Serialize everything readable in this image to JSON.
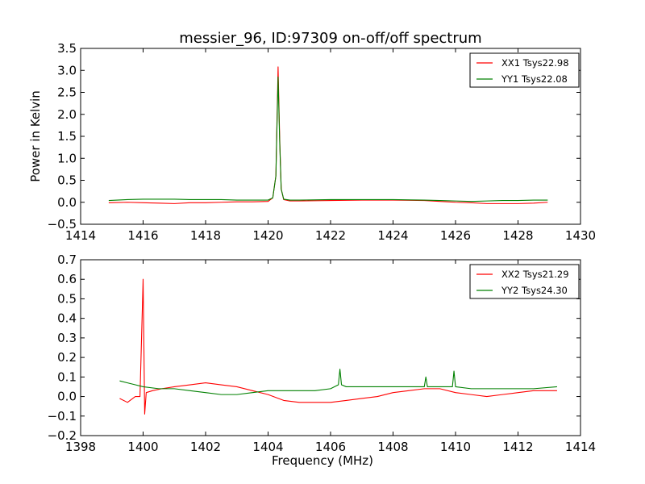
{
  "figure": {
    "title": "messier_96, ID:97309 on-off/off spectrum"
  },
  "chart_data": [
    {
      "type": "line",
      "title": "messier_96, ID:97309 on-off/off spectrum",
      "xlabel": "",
      "ylabel": "Power in Kelvin",
      "xlim": [
        1414,
        1430
      ],
      "ylim": [
        -0.5,
        3.5
      ],
      "xticks": [
        1414,
        1416,
        1418,
        1420,
        1422,
        1424,
        1426,
        1428,
        1430
      ],
      "yticks": [
        -0.5,
        0.0,
        0.5,
        1.0,
        1.5,
        2.0,
        2.5,
        3.0,
        3.5
      ],
      "xtick_labels": [
        "1414",
        "1416",
        "1418",
        "1420",
        "1422",
        "1424",
        "1426",
        "1428",
        "1430"
      ],
      "ytick_labels": [
        "−0.5",
        "0.0",
        "0.5",
        "1.0",
        "1.5",
        "2.0",
        "2.5",
        "3.0",
        "3.5"
      ],
      "grid": false,
      "legend_position": "top-right",
      "series": [
        {
          "name": "XX1 Tsys22.98",
          "color": "#ff0000",
          "x": [
            1414.9,
            1415.5,
            1416.0,
            1416.5,
            1417.0,
            1417.5,
            1418.0,
            1418.5,
            1419.0,
            1419.5,
            1420.0,
            1420.15,
            1420.25,
            1420.32,
            1420.37,
            1420.42,
            1420.5,
            1420.7,
            1421.0,
            1422.0,
            1423.0,
            1424.0,
            1425.0,
            1425.5,
            1426.0,
            1426.5,
            1427.0,
            1427.5,
            1428.0,
            1428.5,
            1428.95
          ],
          "y": [
            -0.01,
            0.0,
            -0.01,
            -0.02,
            -0.03,
            -0.01,
            -0.01,
            0.0,
            0.01,
            0.01,
            0.02,
            0.1,
            0.6,
            3.08,
            1.5,
            0.3,
            0.06,
            0.03,
            0.03,
            0.04,
            0.05,
            0.05,
            0.04,
            0.02,
            0.0,
            -0.01,
            -0.03,
            -0.03,
            -0.03,
            -0.02,
            0.0
          ]
        },
        {
          "name": "YY1 Tsys22.08",
          "color": "#008000",
          "x": [
            1414.9,
            1415.5,
            1416.0,
            1416.5,
            1417.0,
            1417.5,
            1418.0,
            1418.5,
            1419.0,
            1419.5,
            1420.0,
            1420.15,
            1420.25,
            1420.32,
            1420.37,
            1420.42,
            1420.5,
            1420.7,
            1421.0,
            1422.0,
            1423.0,
            1424.0,
            1425.0,
            1425.5,
            1426.0,
            1426.5,
            1427.0,
            1427.5,
            1428.0,
            1428.5,
            1428.95
          ],
          "y": [
            0.04,
            0.06,
            0.07,
            0.07,
            0.07,
            0.06,
            0.06,
            0.06,
            0.05,
            0.05,
            0.05,
            0.1,
            0.6,
            2.85,
            1.4,
            0.3,
            0.07,
            0.05,
            0.05,
            0.06,
            0.06,
            0.06,
            0.05,
            0.04,
            0.03,
            0.02,
            0.03,
            0.04,
            0.04,
            0.05,
            0.05
          ]
        }
      ]
    },
    {
      "type": "line",
      "title": "",
      "xlabel": "Frequency (MHz)",
      "ylabel": "",
      "xlim": [
        1398,
        1414
      ],
      "ylim": [
        -0.2,
        0.7
      ],
      "xticks": [
        1398,
        1400,
        1402,
        1404,
        1406,
        1408,
        1410,
        1412,
        1414
      ],
      "yticks": [
        -0.2,
        -0.1,
        0.0,
        0.1,
        0.2,
        0.3,
        0.4,
        0.5,
        0.6,
        0.7
      ],
      "xtick_labels": [
        "1398",
        "1400",
        "1402",
        "1404",
        "1406",
        "1408",
        "1410",
        "1412",
        "1414"
      ],
      "ytick_labels": [
        "−0.2",
        "−0.1",
        "0.0",
        "0.1",
        "0.2",
        "0.3",
        "0.4",
        "0.5",
        "0.6",
        "0.7"
      ],
      "grid": false,
      "legend_position": "top-right",
      "series": [
        {
          "name": "XX2 Tsys21.29",
          "color": "#ff0000",
          "x": [
            1399.25,
            1399.5,
            1399.75,
            1399.9,
            1400.0,
            1400.05,
            1400.1,
            1400.3,
            1400.6,
            1401.0,
            1401.5,
            1402.0,
            1402.5,
            1403.0,
            1403.5,
            1404.0,
            1404.5,
            1405.0,
            1405.5,
            1406.0,
            1406.5,
            1407.0,
            1407.5,
            1408.0,
            1408.5,
            1409.0,
            1409.5,
            1410.0,
            1410.5,
            1411.0,
            1411.5,
            1412.0,
            1412.5,
            1413.25
          ],
          "y": [
            -0.01,
            -0.03,
            0.0,
            0.0,
            0.6,
            -0.09,
            0.02,
            0.03,
            0.04,
            0.05,
            0.06,
            0.07,
            0.06,
            0.05,
            0.03,
            0.01,
            -0.02,
            -0.03,
            -0.03,
            -0.03,
            -0.02,
            -0.01,
            0.0,
            0.02,
            0.03,
            0.04,
            0.04,
            0.02,
            0.01,
            0.0,
            0.01,
            0.02,
            0.03,
            0.03
          ]
        },
        {
          "name": "YY2 Tsys24.30",
          "color": "#008000",
          "x": [
            1399.25,
            1399.5,
            1399.75,
            1400.0,
            1400.5,
            1401.0,
            1401.5,
            1402.0,
            1402.5,
            1403.0,
            1403.5,
            1404.0,
            1404.5,
            1405.0,
            1405.5,
            1406.0,
            1406.25,
            1406.3,
            1406.35,
            1406.5,
            1407.0,
            1407.5,
            1408.0,
            1408.5,
            1409.0,
            1409.05,
            1409.1,
            1409.5,
            1409.9,
            1409.95,
            1410.0,
            1410.5,
            1411.0,
            1411.5,
            1412.0,
            1412.5,
            1413.25
          ],
          "y": [
            0.08,
            0.07,
            0.06,
            0.05,
            0.04,
            0.04,
            0.03,
            0.02,
            0.01,
            0.01,
            0.02,
            0.03,
            0.03,
            0.03,
            0.03,
            0.04,
            0.06,
            0.14,
            0.06,
            0.05,
            0.05,
            0.05,
            0.05,
            0.05,
            0.05,
            0.1,
            0.05,
            0.05,
            0.05,
            0.13,
            0.05,
            0.04,
            0.04,
            0.04,
            0.04,
            0.04,
            0.05
          ]
        }
      ]
    }
  ]
}
